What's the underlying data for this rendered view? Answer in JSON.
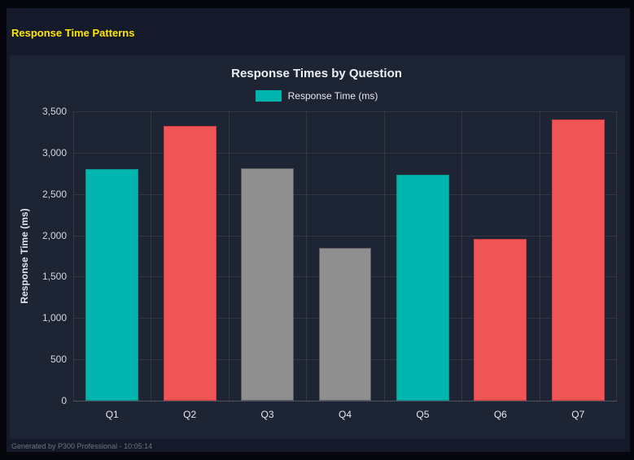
{
  "page": {
    "title": "Response Time Patterns"
  },
  "footer": {
    "text": "Generated by P300 Professional - 10:05:14"
  },
  "chart_data": {
    "type": "bar",
    "title": "Response Times by Question",
    "legend": "Response Time (ms)",
    "legend_position": "top",
    "xlabel": "",
    "ylabel": "Response Time (ms)",
    "categories": [
      "Q1",
      "Q2",
      "Q3",
      "Q4",
      "Q5",
      "Q6",
      "Q7"
    ],
    "values": [
      2800,
      3320,
      2810,
      1850,
      2730,
      1960,
      3400
    ],
    "ylim": [
      0,
      3500
    ],
    "yticks": [
      0,
      500,
      1000,
      1500,
      2000,
      2500,
      3000,
      3500
    ],
    "grid": true,
    "bar_colors": [
      "#00B5AD",
      "#F05454",
      "#8F8F8F",
      "#8F8F8F",
      "#00B5AD",
      "#F05454",
      "#F05454"
    ],
    "bar_border_colors": [
      "#0B938C",
      "#D43F3F",
      "#5C5C5C",
      "#5C5C5C",
      "#0B938C",
      "#D43F3F",
      "#D43F3F"
    ],
    "colors": {
      "teal": "#00B5AD",
      "red": "#F05454",
      "gray": "#8F8F8F"
    }
  }
}
